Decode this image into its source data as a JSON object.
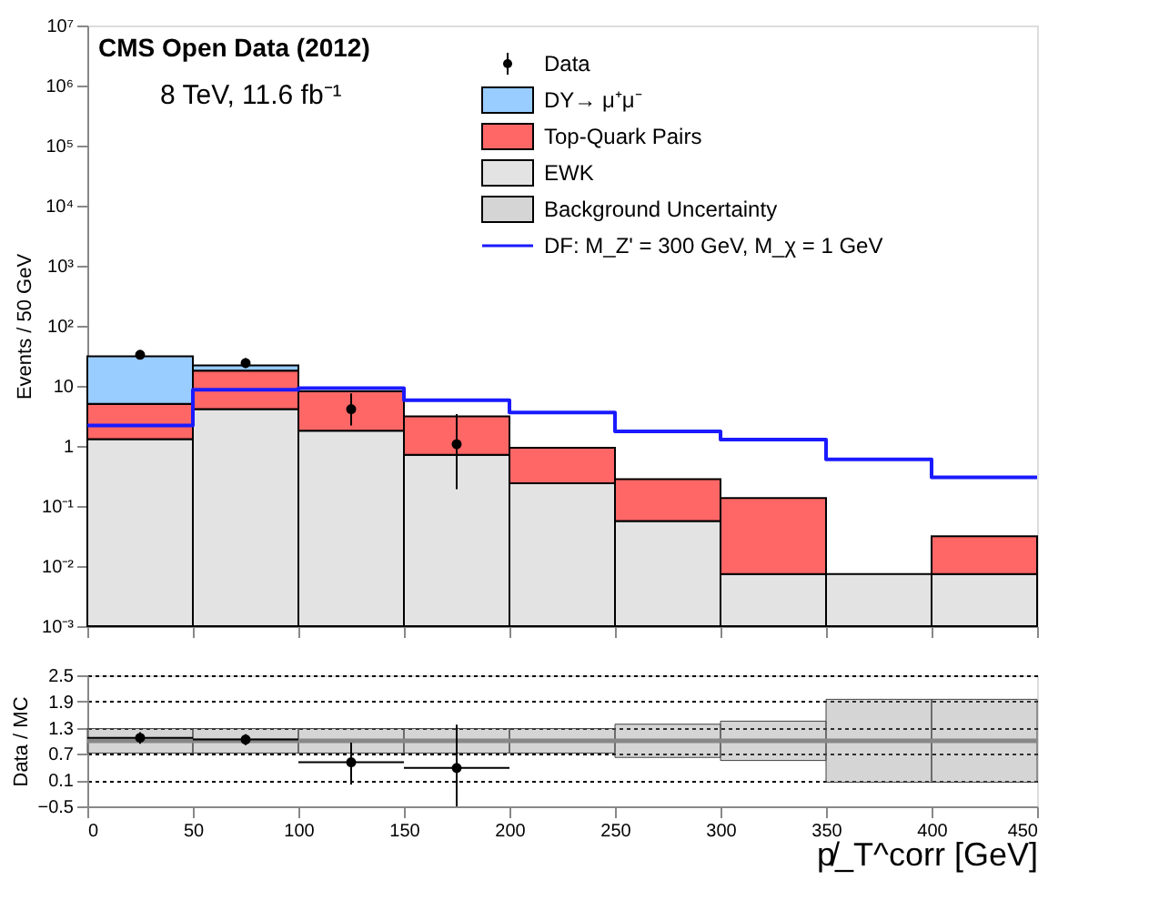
{
  "chart_data": [
    {
      "type": "bar",
      "ylabel": "Events / 50 GeV",
      "x": [
        25,
        75,
        125,
        175,
        225,
        275,
        325,
        375,
        425
      ],
      "stacked": true,
      "log": true,
      "xlim": [
        0,
        450
      ],
      "xticks": [
        0,
        50,
        100,
        150,
        200,
        250,
        300,
        350,
        400,
        450
      ],
      "ylim": [
        0.001,
        10000000
      ],
      "yticks": [
        {
          "value": 0.001,
          "label": "10⁻³"
        },
        {
          "value": 0.01,
          "label": "10⁻²"
        },
        {
          "value": 0.1,
          "label": "10⁻¹"
        },
        1,
        10,
        {
          "value": 100,
          "label": "10²"
        },
        {
          "value": 1000,
          "label": "10³"
        },
        {
          "value": 10000,
          "label": "10⁴"
        },
        {
          "value": 100000,
          "label": "10⁵"
        },
        {
          "value": 1000000,
          "label": "10⁶"
        },
        {
          "value": 10000000,
          "label": "10⁷"
        }
      ],
      "tick_labels": "y",
      "legend": "top right",
      "annotations": [
        "CMS Open Data (2012)",
        "8 TeV, 11.6 fb⁻¹"
      ],
      "series": [
        {
          "name": "EWK",
          "color": "#e3e3e3",
          "values": [
            1.3,
            4.1,
            1.8,
            0.71,
            0.24,
            0.056,
            0.0074,
            0.0074,
            0.0074
          ]
        },
        {
          "name": "Top-Quark Pairs",
          "color": "#ff6666",
          "values": [
            3.7,
            13.9,
            6.3,
            2.39,
            0.69,
            0.224,
            0.128,
            null,
            0.024
          ]
        },
        {
          "name": "DY→ μ⁺μ⁻",
          "color": "#99ccff",
          "values": [
            26,
            4,
            null,
            null,
            null,
            null,
            null,
            null,
            null
          ]
        },
        {
          "type": "step",
          "name": "DF: M_Z' = 300 GeV, M_χ = 1 GeV",
          "color": "#1a1aff",
          "x": [
            0,
            50,
            100,
            150,
            200,
            250,
            300,
            350,
            400,
            450
          ],
          "values": [
            2.2,
            8.6,
            9.2,
            5.75,
            3.6,
            1.75,
            1.28,
            0.6,
            0.3,
            0.3
          ]
        },
        {
          "type": "scatter",
          "name": "Data",
          "color": "#000000",
          "x": [
            25,
            75,
            125,
            175
          ],
          "values": [
            33,
            24,
            4.1,
            1.07
          ],
          "errors": [
            [
              28,
              39
            ],
            [
              20,
              29
            ],
            [
              2.2,
              7.5
            ],
            [
              0.19,
              3.4
            ]
          ]
        }
      ]
    },
    {
      "type": "scatter",
      "xlabel": "p̸_T^corr [GeV]",
      "ylabel": "Data / MC",
      "xlim": [
        0,
        450
      ],
      "xticks": [
        0,
        50,
        100,
        150,
        200,
        250,
        300,
        350,
        400,
        450
      ],
      "ylim": [
        -0.5,
        2.5
      ],
      "yticks": [
        {
          "value": -0.5,
          "label": "−0.5"
        },
        0.1,
        0.7,
        1.3,
        1.9,
        2.5
      ],
      "grid": "y",
      "series": [
        {
          "type": "step",
          "name": "Background Uncertainty",
          "color": "#888888",
          "x": [
            0,
            50,
            100,
            150,
            200,
            250,
            300,
            350,
            400,
            450
          ],
          "values": [
            1,
            1,
            1,
            1,
            1,
            1,
            1,
            1,
            1,
            1
          ],
          "lower": [
            0.72,
            0.72,
            0.72,
            0.72,
            0.72,
            0.62,
            0.55,
            0.05,
            0.05,
            0.05
          ],
          "upper": [
            1.28,
            1.28,
            1.28,
            1.28,
            1.28,
            1.38,
            1.45,
            1.95,
            1.95,
            1.95
          ]
        },
        {
          "type": "scatter",
          "color": "#000000",
          "x": [
            25,
            75,
            125,
            175
          ],
          "values": [
            1.07,
            1.03,
            0.51,
            0.38
          ],
          "errors": [
            [
              0.93,
              1.2
            ],
            [
              0.9,
              1.15
            ],
            [
              0.0,
              0.96
            ],
            [
              -0.5,
              1.37
            ]
          ],
          "xerrors": [
            25,
            25,
            25,
            25
          ]
        }
      ]
    }
  ]
}
